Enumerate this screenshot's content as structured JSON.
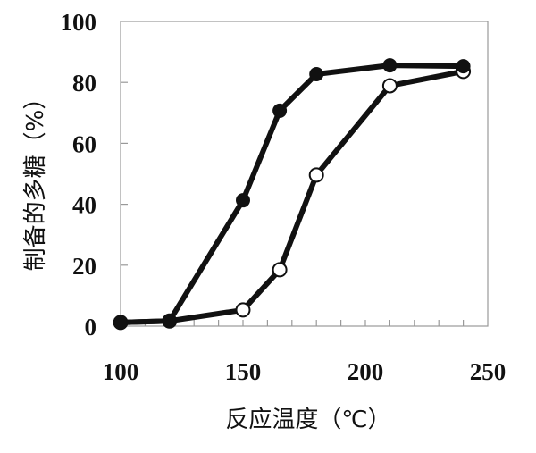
{
  "chart_data": {
    "type": "line",
    "title": "",
    "xlabel": "反应温度（℃）",
    "ylabel": "制备的多糖（%）",
    "xlim": [
      100,
      250
    ],
    "ylim": [
      0,
      100
    ],
    "xticks": [
      100,
      150,
      200,
      250
    ],
    "yticks": [
      0,
      20,
      40,
      60,
      80,
      100
    ],
    "grid": false,
    "series": [
      {
        "marker": "filled-circle",
        "color": "#111111",
        "x": [
          100,
          120,
          150,
          165,
          180,
          210,
          240
        ],
        "y": [
          1.2,
          1.7,
          41.3,
          70.7,
          82.7,
          85.6,
          85.3
        ]
      },
      {
        "marker": "open-circle",
        "color": "#111111",
        "x": [
          100,
          120,
          150,
          165,
          180,
          210,
          240
        ],
        "y": [
          1.2,
          1.7,
          5.3,
          18.5,
          49.6,
          78.9,
          83.6
        ]
      }
    ]
  }
}
